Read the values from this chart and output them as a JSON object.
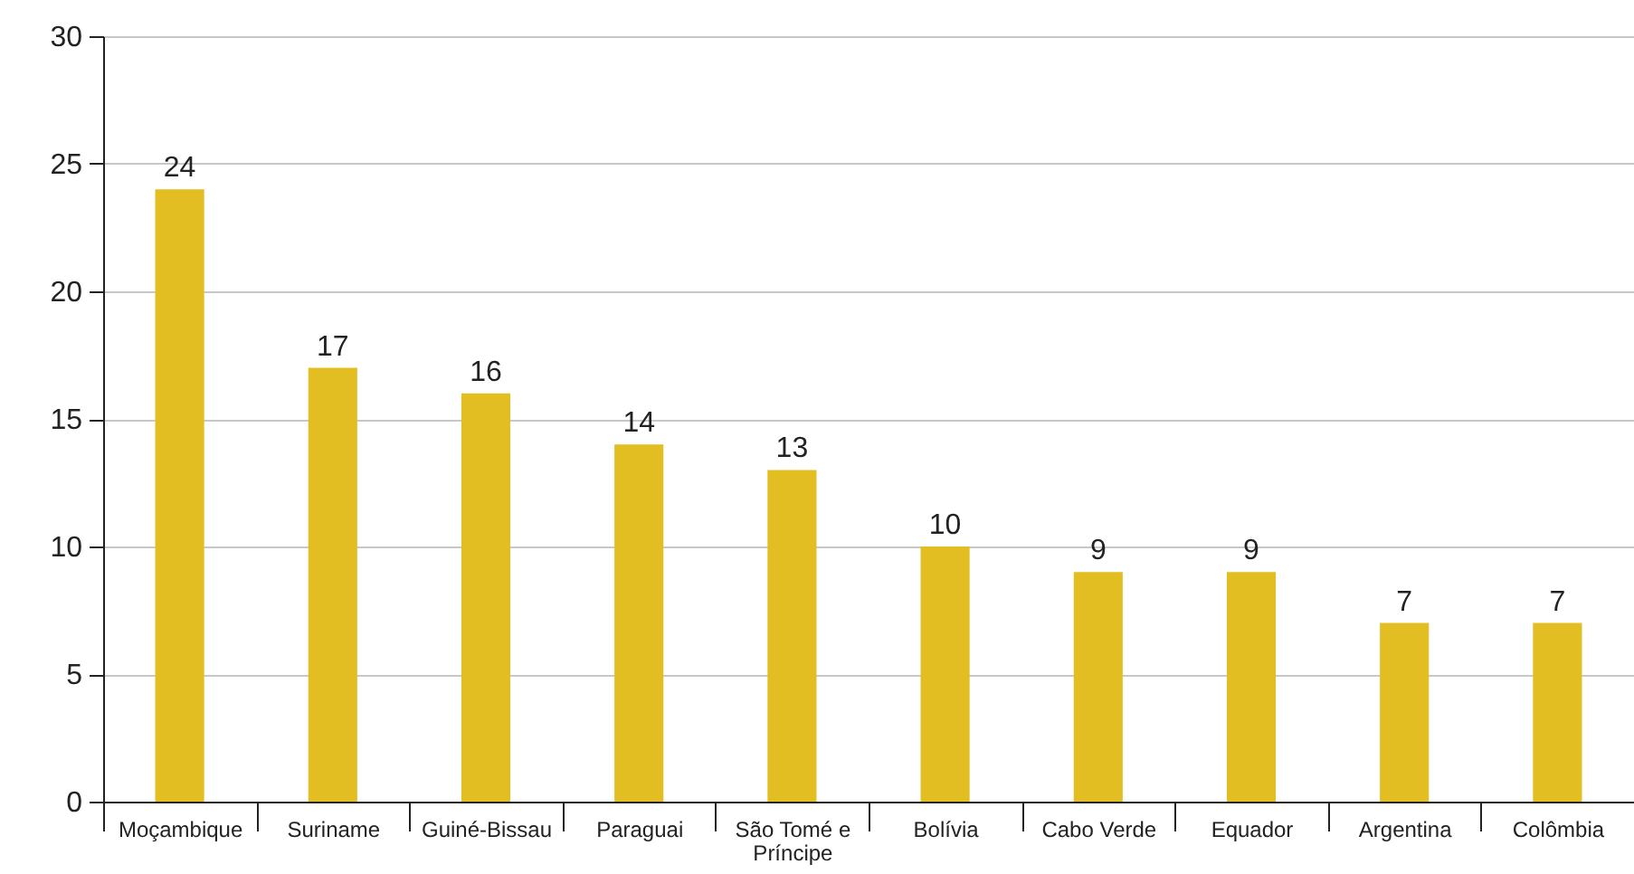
{
  "chart_data": {
    "type": "bar",
    "categories": [
      "Moçambique",
      "Suriname",
      "Guiné-Bissau",
      "Paraguai",
      "São Tomé e Príncipe",
      "Bolívia",
      "Cabo Verde",
      "Equador",
      "Argentina",
      "Colômbia"
    ],
    "values": [
      24,
      17,
      16,
      14,
      13,
      10,
      9,
      9,
      7,
      7
    ],
    "color": "#e3be22",
    "ylim": [
      0,
      30
    ],
    "yticks": [
      0,
      5,
      10,
      15,
      20,
      25,
      30
    ],
    "grid": "y",
    "data_labels": true
  }
}
